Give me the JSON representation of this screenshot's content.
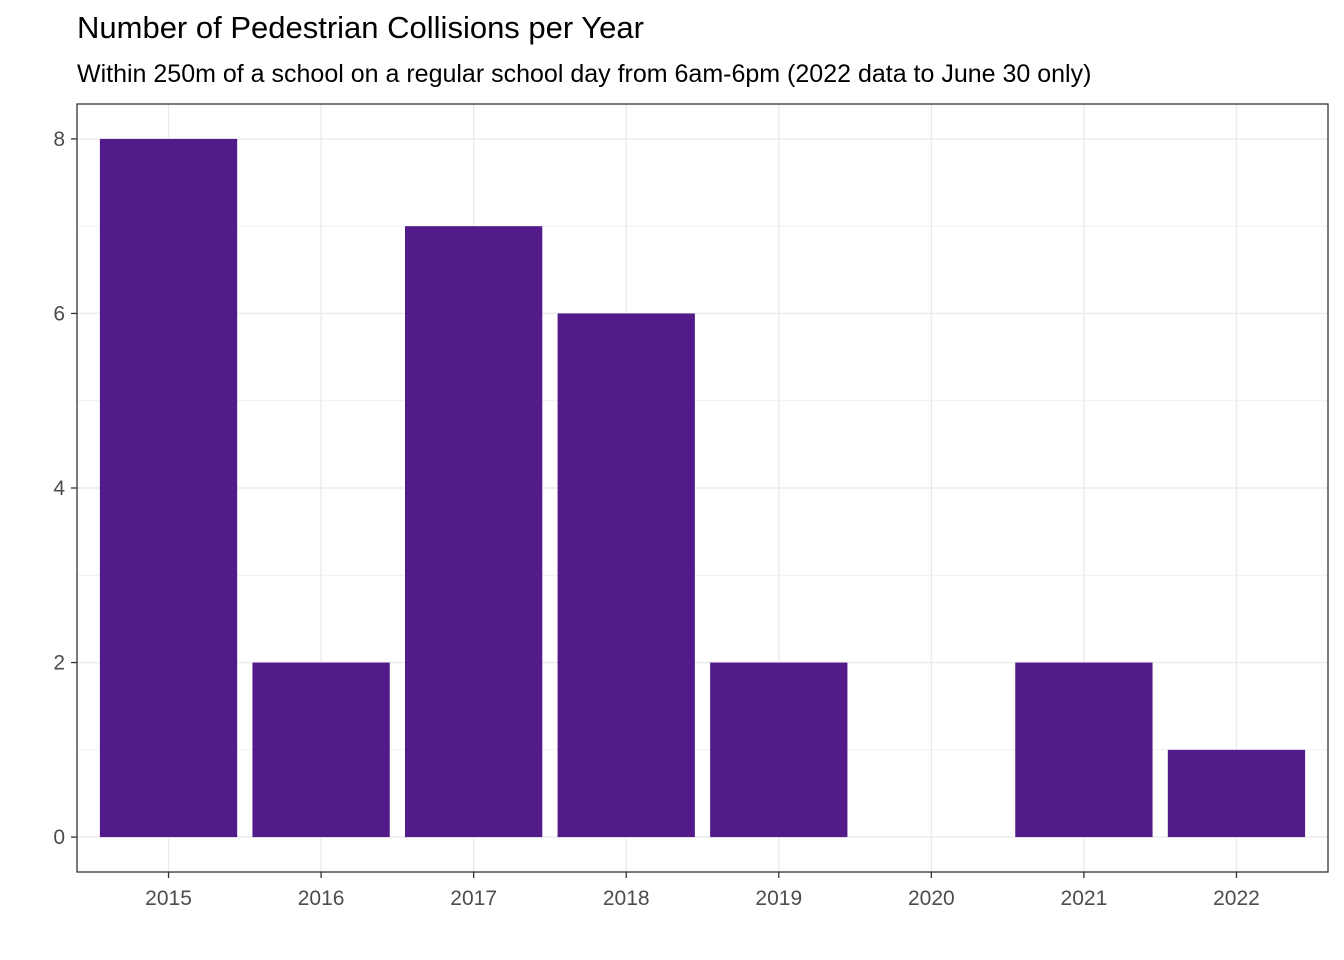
{
  "chart_data": {
    "type": "bar",
    "title": "Number of Pedestrian Collisions per Year",
    "subtitle": "Within 250m of a school on a regular school day from 6am-6pm (2022 data to June 30 only)",
    "xlabel": "",
    "ylabel": "",
    "categories": [
      "2015",
      "2016",
      "2017",
      "2018",
      "2019",
      "2020",
      "2021",
      "2022"
    ],
    "values": [
      8,
      2,
      7,
      6,
      2,
      0,
      2,
      1
    ],
    "ylim": [
      -0.4,
      8.4
    ],
    "yticks": [
      0,
      2,
      4,
      6,
      8
    ],
    "grid": true,
    "bar_color": "#531B8A",
    "grid_color": "#EBEBEB"
  }
}
